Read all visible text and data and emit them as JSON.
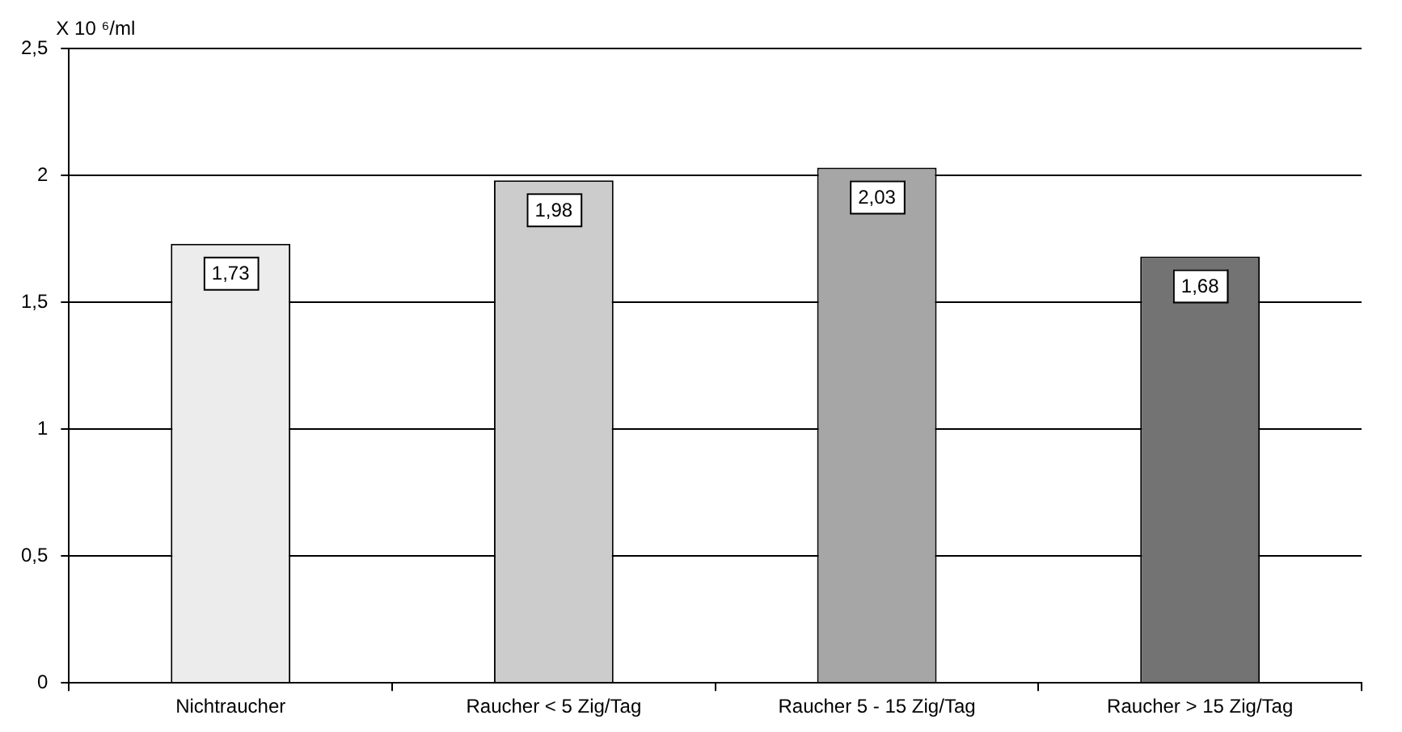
{
  "chart_data": {
    "type": "bar",
    "ylabel": "X 10 ⁶/ml",
    "categories": [
      "Nichtraucher",
      "Raucher < 5 Zig/Tag",
      "Raucher 5 - 15 Zig/Tag",
      "Raucher > 15 Zig/Tag"
    ],
    "values": [
      1.73,
      1.98,
      2.03,
      1.68
    ],
    "colors": [
      "#ececec",
      "#cccccc",
      "#a6a6a6",
      "#737373"
    ],
    "ylim": [
      0,
      2.5
    ],
    "yticks": [
      0,
      {
        "value": 0.5,
        "label": "0,5"
      },
      1,
      {
        "value": 1.5,
        "label": "1,5"
      },
      2,
      {
        "value": 2.5,
        "label": "2,5"
      }
    ],
    "value_labels": [
      "1,73",
      "1,98",
      "2,03",
      "1,68"
    ],
    "grid": "y",
    "legend": false
  }
}
